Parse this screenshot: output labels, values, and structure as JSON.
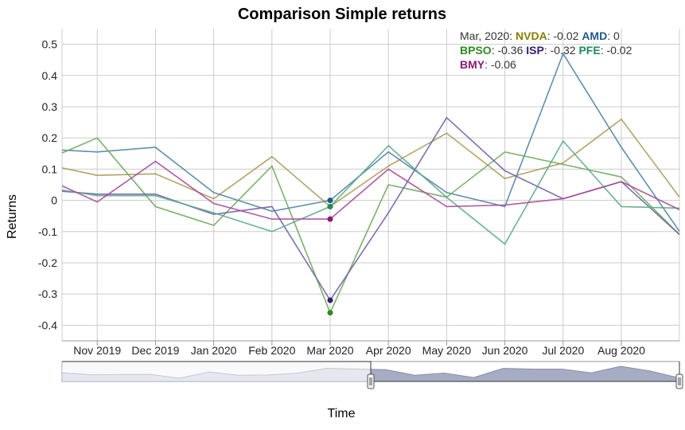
{
  "chart_data": {
    "type": "line",
    "title": "Comparison Simple returns",
    "xlabel": "Time",
    "ylabel": "Returns",
    "ylim": [
      -0.45,
      0.55
    ],
    "grid": true,
    "x_tick_labels": [
      "Nov 2019",
      "Dec 2019",
      "Jan 2020",
      "Feb 2020",
      "Mar 2020",
      "Apr 2020",
      "May 2020",
      "Jun 2020",
      "Jul 2020",
      "Aug 2020"
    ],
    "y_tick_labels": [
      "0.5",
      "0.4",
      "0.3",
      "0.2",
      "0.1",
      "0",
      "-0.1",
      "-0.2",
      "-0.3",
      "-0.4"
    ],
    "y_ticks": [
      0.5,
      0.4,
      0.3,
      0.2,
      0.1,
      0,
      -0.1,
      -0.2,
      -0.3,
      -0.4
    ],
    "x": [
      "2019-10",
      "2019-11",
      "2019-12",
      "2020-01",
      "2020-02",
      "2020-03",
      "2020-04",
      "2020-05",
      "2020-06",
      "2020-07",
      "2020-08",
      "2020-09"
    ],
    "highlight_x": "2020-03",
    "tooltip": {
      "date_label": "Mar, 2020:",
      "entries": [
        {
          "name": "NVDA",
          "value": "-0.02",
          "color": "#8c7d00"
        },
        {
          "name": "AMD",
          "value": "0",
          "color": "#1f5a8a"
        },
        {
          "name": "BPSO",
          "value": "-0.36",
          "color": "#2e8b20"
        },
        {
          "name": "ISP",
          "value": "-0.32",
          "color": "#3a1a78"
        },
        {
          "name": "PFE",
          "value": "-0.02",
          "color": "#1f8a5a"
        },
        {
          "name": "BMY",
          "value": "-0.06",
          "color": "#8a1a7a"
        }
      ]
    },
    "series": [
      {
        "name": "NVDA",
        "color": "#a99a55",
        "values": [
          0.12,
          0.08,
          0.085,
          0.005,
          0.14,
          -0.02,
          0.11,
          0.215,
          0.07,
          0.12,
          0.26,
          0.01
        ]
      },
      {
        "name": "AMD",
        "color": "#4f83a6",
        "values": [
          0.165,
          0.155,
          0.17,
          0.025,
          -0.035,
          0.0,
          0.155,
          0.025,
          -0.02,
          0.47,
          0.17,
          -0.1
        ]
      },
      {
        "name": "BPSO",
        "color": "#6aaa5a",
        "values": [
          0.12,
          0.2,
          -0.02,
          -0.08,
          0.11,
          -0.36,
          0.05,
          0.01,
          0.155,
          0.115,
          0.075,
          -0.11
        ]
      },
      {
        "name": "ISP",
        "color": "#7060a8",
        "values": [
          0.035,
          0.02,
          0.02,
          -0.045,
          -0.02,
          -0.32,
          -0.04,
          0.265,
          0.095,
          0.005,
          0.06,
          -0.11
        ]
      },
      {
        "name": "PFE",
        "color": "#5aaa8a",
        "values": [
          0.045,
          0.015,
          0.015,
          -0.04,
          -0.1,
          -0.02,
          0.175,
          0.01,
          -0.14,
          0.19,
          -0.02,
          -0.025
        ]
      },
      {
        "name": "BMY",
        "color": "#a8489a",
        "values": [
          0.08,
          -0.005,
          0.125,
          -0.01,
          -0.06,
          -0.06,
          0.1,
          -0.02,
          -0.015,
          0.005,
          0.06,
          -0.03
        ]
      }
    ],
    "navigator": {
      "values": [
        0.12,
        0.08,
        0.085,
        0.085,
        0.005,
        0.14,
        0.07,
        0.075,
        0.11,
        0.215,
        0.2,
        0.19,
        0.07,
        0.115,
        0.02,
        0.215,
        0.2,
        0.2,
        0.12,
        0.26,
        0.16,
        0.01
      ],
      "selected_from": 0.5,
      "selected_to": 1.0
    }
  }
}
